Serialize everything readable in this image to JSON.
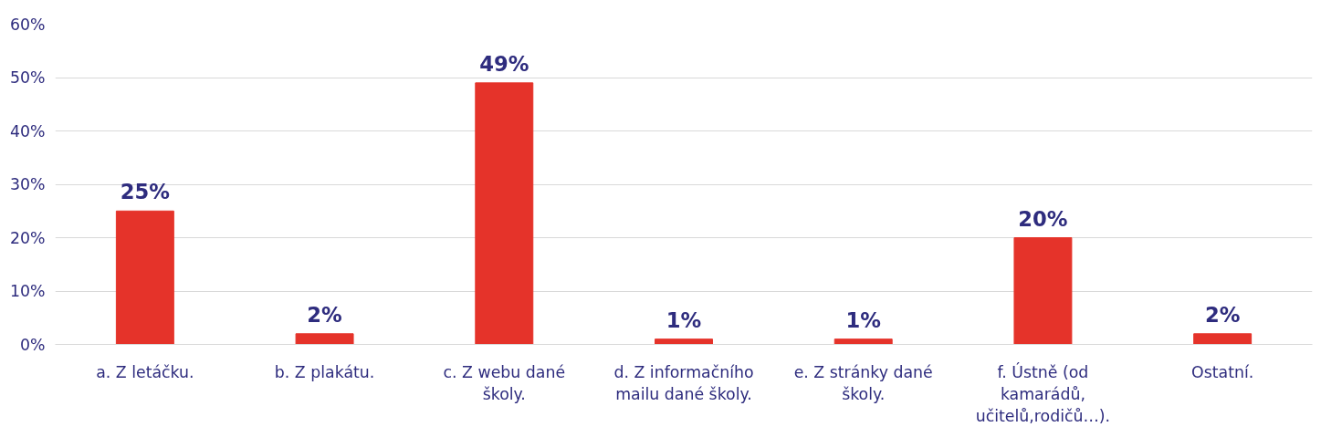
{
  "chart_data": {
    "type": "bar",
    "categories": [
      "a. Z letáčku.",
      "b. Z plakátu.",
      "c. Z webu dané školy.",
      "d. Z informačního mailu dané školy.",
      "e. Z stránky dané školy.",
      "f. Ústně (od kamarádů, učitelů,rodičů…).",
      "Ostatní."
    ],
    "values": [
      25,
      2,
      49,
      1,
      1,
      20,
      2
    ],
    "value_labels": [
      "25%",
      "2%",
      "49%",
      "1%",
      "1%",
      "20%",
      "2%"
    ],
    "color": "#e5332a",
    "ylim": [
      0,
      60
    ],
    "yticks": [
      {
        "value": 0,
        "label": "0%"
      },
      {
        "value": 10,
        "label": "10%"
      },
      {
        "value": 20,
        "label": "20%"
      },
      {
        "value": 30,
        "label": "30%"
      },
      {
        "value": 40,
        "label": "40%"
      },
      {
        "value": 50,
        "label": "50%"
      },
      {
        "value": 60,
        "label": "60%"
      }
    ],
    "grid": "y"
  }
}
